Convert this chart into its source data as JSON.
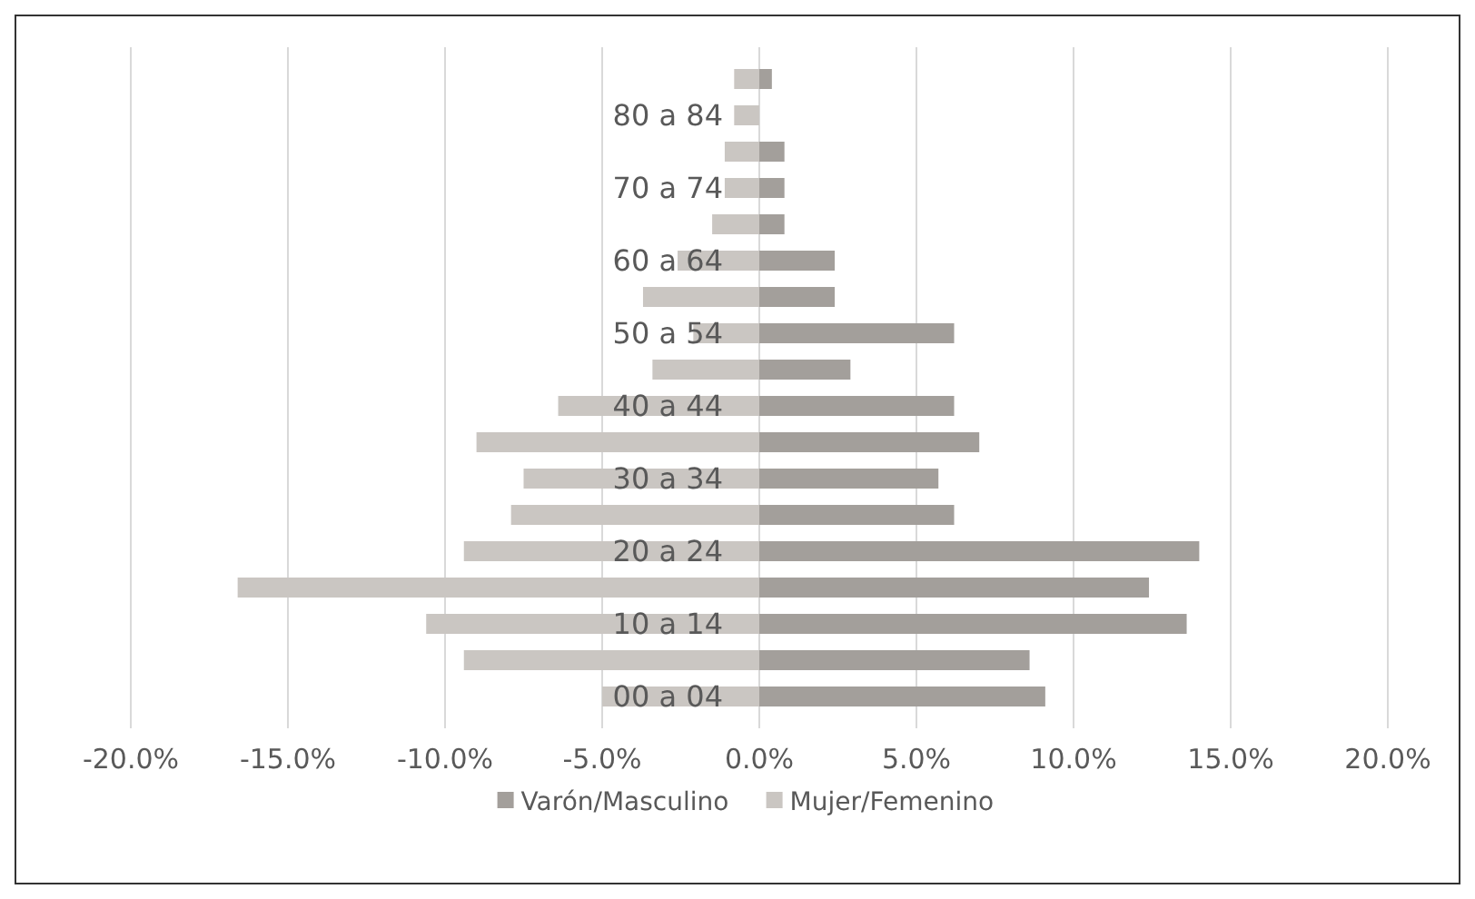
{
  "chart_data": {
    "type": "bar",
    "orientation": "horizontal",
    "categories": [
      null,
      "80 a 84",
      null,
      "70 a 74",
      null,
      "60 a 64",
      null,
      "50 a 54",
      null,
      "40 a 44",
      null,
      "30 a 34",
      null,
      "20 a 24",
      null,
      "10 a 14",
      null,
      "00 a 04"
    ],
    "series": [
      {
        "name": "Varón/Masculino",
        "color": "#a39f9b",
        "values": [
          0.4,
          0,
          0.8,
          0.8,
          0.8,
          2.4,
          2.4,
          6.2,
          2.9,
          6.2,
          7.0,
          5.7,
          6.2,
          14.0,
          12.4,
          13.6,
          8.6,
          9.1
        ]
      },
      {
        "name": "Mujer/Femenino",
        "color": "#cac6c2",
        "values": [
          -0.8,
          -0.8,
          -1.1,
          -1.1,
          -1.5,
          -2.6,
          -3.7,
          -2.1,
          -3.4,
          -6.4,
          -9.0,
          -7.5,
          -7.9,
          -9.4,
          -16.6,
          -10.6,
          -9.4,
          -5.0
        ]
      }
    ],
    "xlim": [
      -20,
      20
    ],
    "xticks": [
      {
        "value": -20,
        "label": "-20.0%"
      },
      {
        "value": -15,
        "label": "-15.0%"
      },
      {
        "value": -10,
        "label": "-10.0%"
      },
      {
        "value": -5,
        "label": "-5.0%"
      },
      {
        "value": 0,
        "label": "0.0%"
      },
      {
        "value": 5,
        "label": "5.0%"
      },
      {
        "value": 10,
        "label": "10.0%"
      },
      {
        "value": 15,
        "label": "15.0%"
      },
      {
        "value": 20,
        "label": "20.0%"
      }
    ],
    "stacked": true,
    "grid": "x",
    "legend": "bottom"
  }
}
